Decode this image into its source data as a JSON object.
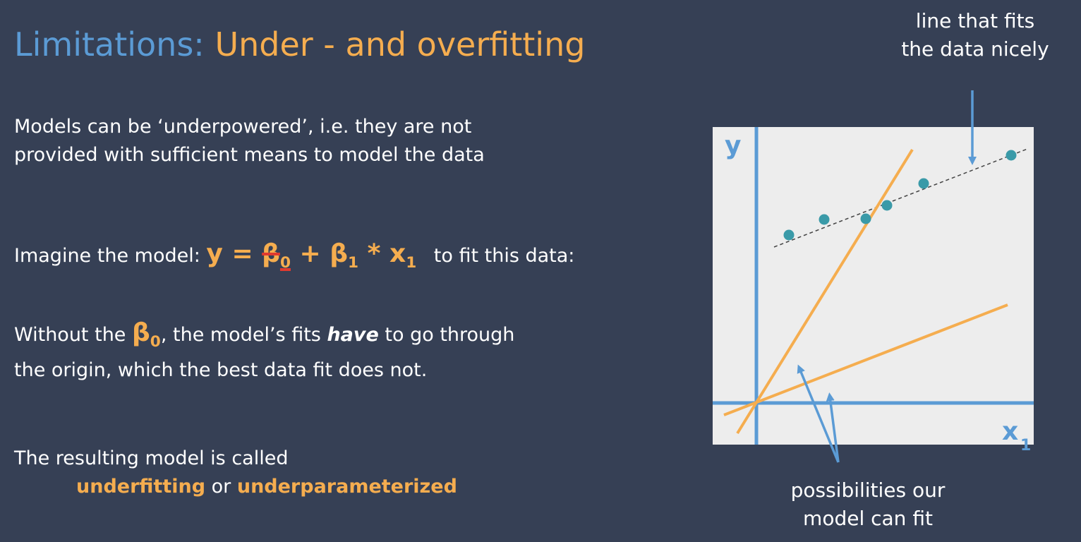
{
  "title": {
    "part1": "Limitations:",
    "part2": "Under - and overfitting"
  },
  "para1": {
    "line1": "Models can be ‘underpowered’, i.e. they are not",
    "line2": "provided with sufficient means to model the data"
  },
  "para2": {
    "prefix": "Imagine the model:",
    "y": "y",
    "eq": "=",
    "beta": "β",
    "sub0": "0",
    "plus": "+",
    "sub1": "1",
    "times": "*",
    "x": "x",
    "suffix": "to fit this data:"
  },
  "para3": {
    "prefix": "Without the",
    "beta": "β",
    "sub0": "0",
    "middle": ", the model’s fits",
    "emph": "have",
    "suffix": "to go through",
    "line2": "the origin, which the best data fit does not."
  },
  "para4": {
    "line1": "The resulting model is called",
    "term1": "underfitting",
    "or": "or",
    "term2": "underparameterized"
  },
  "annotation_top": {
    "line1": "line that fits",
    "line2": "the data nicely"
  },
  "annotation_bottom": {
    "line1": "possibilities our",
    "line2": "model can fit"
  },
  "diagram": {
    "y_label": "y",
    "x_label": "x",
    "x_sub": "1",
    "colors": {
      "panel": "#ededed",
      "axis": "#5b9bd5",
      "model_line": "#f5ad4f",
      "point": "#3a9aa8",
      "dashed": "#444444",
      "arrow": "#5b9bd5"
    }
  }
}
